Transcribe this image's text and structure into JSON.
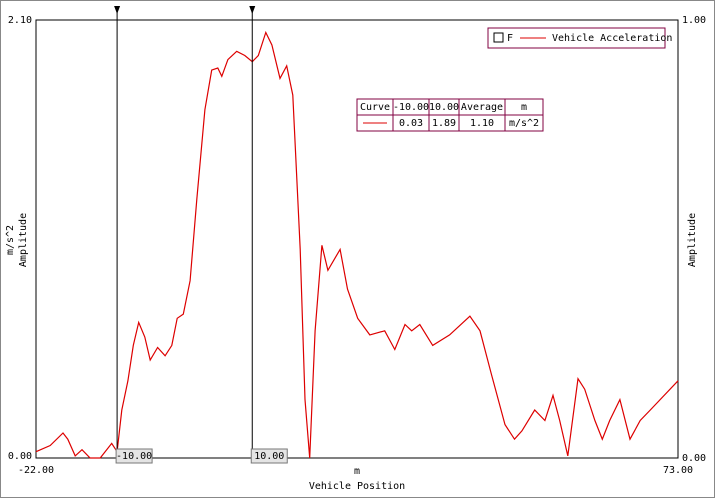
{
  "chart_data": {
    "type": "line",
    "xlabel": "Vehicle Position",
    "xunit": "m",
    "ylabel": "Amplitude",
    "yunit": "m/s^2",
    "y2label": "Amplitude",
    "legend_checkbox": "F",
    "legend": "upper right",
    "x": [
      -22,
      -19.9,
      -18,
      -17.3,
      -16.2,
      -15.2,
      -14,
      -12.5,
      -10.8,
      -10,
      -9.3,
      -8.4,
      -7.6,
      -6.8,
      -5.9,
      -5.1,
      -4,
      -2.9,
      -1.9,
      -1.1,
      -0.2,
      0.8,
      1.8,
      3,
      4,
      4.9,
      5.5,
      6.4,
      7.7,
      8.9,
      10,
      10.9,
      12,
      12.9,
      14.1,
      15.1,
      16,
      17.1,
      17.8,
      18.5,
      19.3,
      20.3,
      21.2,
      23,
      24.1,
      25.6,
      27.4,
      29.6,
      31.1,
      32.6,
      33.6,
      34.8,
      36.7,
      39.2,
      42.2,
      43.7,
      45.4,
      47.4,
      48.8,
      49.9,
      51.8,
      53.3,
      54.5,
      55.5,
      56.7,
      58.2,
      59.2,
      60.7,
      61.8,
      62.9,
      64.4,
      65.9,
      67.4,
      68.9,
      73
    ],
    "series": [
      {
        "name": "Vehicle Acceleration",
        "color": "#dd0000",
        "values": [
          0.03,
          0.06,
          0.12,
          0.09,
          0.01,
          0.04,
          0,
          0,
          0.07,
          0.03,
          0.23,
          0.37,
          0.54,
          0.65,
          0.58,
          0.47,
          0.53,
          0.49,
          0.54,
          0.67,
          0.69,
          0.85,
          1.24,
          1.67,
          1.86,
          1.87,
          1.83,
          1.91,
          1.95,
          1.93,
          1.9,
          1.93,
          2.04,
          1.98,
          1.82,
          1.88,
          1.74,
          1.0,
          0.28,
          0,
          0.61,
          1.02,
          0.9,
          1.0,
          0.81,
          0.67,
          0.59,
          0.61,
          0.52,
          0.64,
          0.61,
          0.64,
          0.54,
          0.59,
          0.68,
          0.61,
          0.4,
          0.16,
          0.09,
          0.13,
          0.23,
          0.18,
          0.3,
          0.18,
          0.01,
          0.38,
          0.33,
          0.18,
          0.09,
          0.18,
          0.28,
          0.09,
          0.18,
          0.23,
          0.37
        ]
      }
    ],
    "xlim": [
      -22,
      73
    ],
    "xticks": [
      {
        "value": -22,
        "label": "-22.00"
      },
      {
        "value": 73,
        "label": "73.00"
      }
    ],
    "ylim": [
      0,
      2.1
    ],
    "yticks": [
      {
        "value": 0,
        "label": "0.00"
      },
      {
        "value": 2.1,
        "label": "2.10"
      }
    ],
    "y2lim": [
      0,
      1
    ],
    "y2ticks": [
      {
        "value": 0,
        "label": "0.00"
      },
      {
        "value": 1,
        "label": "1.00"
      }
    ],
    "cursors": [
      {
        "value": -10,
        "label": "-10.00"
      },
      {
        "value": 10,
        "label": "10.00"
      }
    ],
    "cursor_table": {
      "headers": [
        "Curve",
        "-10.00",
        "10.00",
        "Average",
        "m"
      ],
      "row": [
        "0.03",
        "1.89",
        "1.10",
        "m/s^2"
      ]
    }
  }
}
